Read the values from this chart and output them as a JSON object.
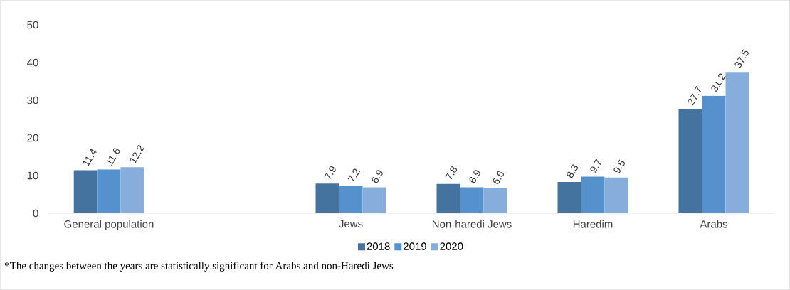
{
  "chart_data": {
    "type": "bar",
    "categories": [
      "General population",
      null,
      "Jews",
      "Non-haredi Jews",
      "Haredim",
      "Arabs"
    ],
    "series": [
      {
        "name": "2018",
        "color": "#44739f",
        "values": [
          11.4,
          null,
          7.9,
          7.8,
          8.3,
          27.7
        ]
      },
      {
        "name": "2019",
        "color": "#5591cc",
        "values": [
          11.6,
          null,
          7.2,
          6.9,
          9.7,
          31.2
        ]
      },
      {
        "name": "2020",
        "color": "#86addb",
        "values": [
          12.2,
          null,
          6.9,
          6.6,
          9.5,
          37.5
        ]
      }
    ],
    "ylim": [
      0,
      50
    ],
    "yticks": [
      0,
      10,
      20,
      30,
      40,
      50
    ],
    "data_labels": true,
    "legend": "bottom",
    "annotations": [
      "*The changes between the years are statistically significant for Arabs and non-Haredi Jews"
    ]
  }
}
